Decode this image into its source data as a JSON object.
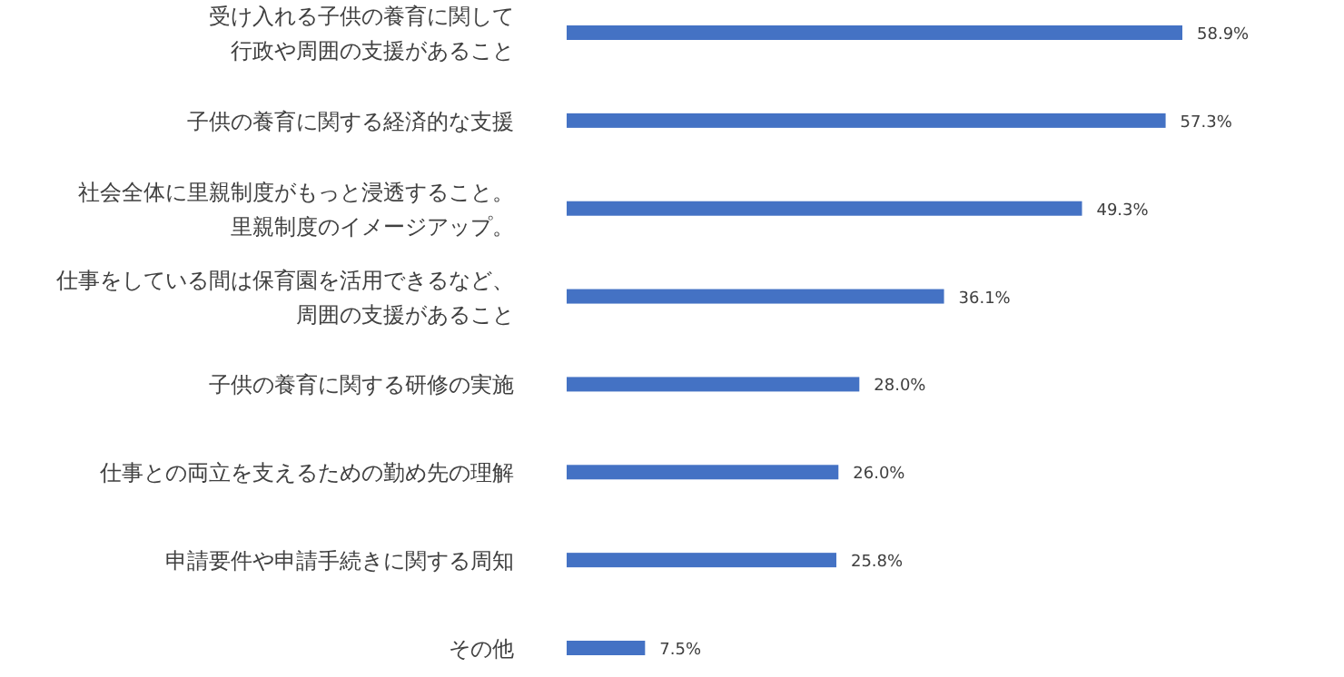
{
  "chart_data": {
    "type": "bar",
    "orientation": "horizontal",
    "categories": [
      "受け入れる子供の養育に関して行政や周囲の支援があること",
      "子供の養育に関する経済的な支援",
      "社会全体に里親制度がもっと浸透すること。里親制度のイメージアップ。",
      "仕事をしている間は保育園を活用できるなど、周囲の支援があること",
      "子供の養育に関する研修の実施",
      "仕事との両立を支えるための勤め先の理解",
      "申請要件や申請手続きに関する周知",
      "その他"
    ],
    "values": [
      58.9,
      57.3,
      49.3,
      36.1,
      28.0,
      26.0,
      25.8,
      7.5
    ],
    "value_labels": [
      "58.9%",
      "57.3%",
      "49.3%",
      "36.1%",
      "28.0%",
      "26.0%",
      "25.8%",
      "7.5%"
    ],
    "color": "#4472c4"
  }
}
